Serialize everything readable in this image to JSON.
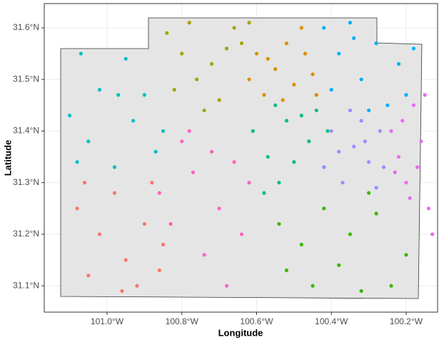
{
  "chart_data": {
    "type": "scatter",
    "x_label": "Longitude",
    "y_label": "Latitude",
    "xlim": [
      -101.168,
      -100.116
    ],
    "ylim": [
      31.049,
      31.647
    ],
    "xticks": [
      {
        "value": -101.0,
        "label": "101.0°W"
      },
      {
        "value": -100.8,
        "label": "100.8°W"
      },
      {
        "value": -100.6,
        "label": "100.6°W"
      },
      {
        "value": -100.4,
        "label": "100.4°W"
      },
      {
        "value": -100.2,
        "label": "100.2°W"
      }
    ],
    "yticks": [
      {
        "value": 31.1,
        "label": "31.1°N"
      },
      {
        "value": 31.2,
        "label": "31.2°N"
      },
      {
        "value": 31.3,
        "label": "31.3°N"
      },
      {
        "value": 31.4,
        "label": "31.4°N"
      },
      {
        "value": 31.5,
        "label": "31.5°N"
      },
      {
        "value": 31.6,
        "label": "31.6°N"
      }
    ],
    "grid": true,
    "series": [
      {
        "color": "#F8766D",
        "x": [
          -101.08,
          -101.05,
          -101.02,
          -100.98,
          -100.95,
          -100.92,
          -100.9,
          -100.88,
          -100.85,
          -101.06,
          -100.96,
          -100.86
        ],
        "values": [
          31.25,
          31.12,
          31.2,
          31.28,
          31.15,
          31.1,
          31.22,
          31.3,
          31.18,
          31.3,
          31.09,
          31.13
        ]
      },
      {
        "color": "#D89000",
        "x": [
          -100.62,
          -100.58,
          -100.55,
          -100.52,
          -100.5,
          -100.47,
          -100.45,
          -100.57,
          -100.53,
          -100.48,
          -100.6,
          -100.44
        ],
        "values": [
          31.5,
          31.47,
          31.52,
          31.57,
          31.49,
          31.55,
          31.51,
          31.54,
          31.46,
          31.6,
          31.55,
          31.47
        ]
      },
      {
        "color": "#A3A500",
        "x": [
          -100.84,
          -100.8,
          -100.76,
          -100.72,
          -100.7,
          -100.66,
          -100.64,
          -100.62,
          -100.68,
          -100.78,
          -100.74,
          -100.82
        ],
        "values": [
          31.59,
          31.55,
          31.5,
          31.53,
          31.46,
          31.6,
          31.57,
          31.61,
          31.56,
          31.61,
          31.44,
          31.48
        ]
      },
      {
        "color": "#39B600",
        "x": [
          -100.54,
          -100.52,
          -100.48,
          -100.45,
          -100.42,
          -100.38,
          -100.35,
          -100.32,
          -100.28,
          -100.24,
          -100.2,
          -100.3
        ],
        "values": [
          31.22,
          31.13,
          31.18,
          31.1,
          31.25,
          31.14,
          31.2,
          31.09,
          31.24,
          31.1,
          31.16,
          31.28
        ]
      },
      {
        "color": "#00BF7D",
        "x": [
          -100.61,
          -100.57,
          -100.54,
          -100.52,
          -100.48,
          -100.46,
          -100.44,
          -100.42,
          -100.58,
          -100.5,
          -100.55,
          -100.41
        ],
        "values": [
          31.4,
          31.35,
          31.3,
          31.42,
          31.43,
          31.38,
          31.44,
          31.33,
          31.28,
          31.34,
          31.45,
          31.4
        ]
      },
      {
        "color": "#00BFC4",
        "x": [
          -101.1,
          -101.07,
          -101.05,
          -101.02,
          -100.98,
          -100.95,
          -100.93,
          -100.9,
          -100.87,
          -100.85,
          -101.08,
          -100.97
        ],
        "values": [
          31.43,
          31.55,
          31.38,
          31.48,
          31.33,
          31.54,
          31.42,
          31.47,
          31.36,
          31.4,
          31.34,
          31.47
        ]
      },
      {
        "color": "#00B0F6",
        "x": [
          -100.42,
          -100.38,
          -100.35,
          -100.32,
          -100.28,
          -100.25,
          -100.22,
          -100.18,
          -100.3,
          -100.4,
          -100.2,
          -100.34
        ],
        "values": [
          31.6,
          31.55,
          31.61,
          31.5,
          31.57,
          31.45,
          31.53,
          31.56,
          31.44,
          31.48,
          31.47,
          31.58
        ]
      },
      {
        "color": "#9590FF",
        "x": [
          -100.42,
          -100.4,
          -100.37,
          -100.34,
          -100.32,
          -100.3,
          -100.28,
          -100.27,
          -100.35,
          -100.38,
          -100.26,
          -100.31
        ],
        "values": [
          31.33,
          31.4,
          31.3,
          31.37,
          31.42,
          31.34,
          31.29,
          31.4,
          31.44,
          31.36,
          31.33,
          31.38
        ]
      },
      {
        "color": "#E76BF3",
        "x": [
          -100.24,
          -100.22,
          -100.2,
          -100.18,
          -100.16,
          -100.14,
          -100.17,
          -100.21,
          -100.15,
          -100.19,
          -100.13,
          -100.23
        ],
        "values": [
          31.4,
          31.35,
          31.3,
          31.45,
          31.38,
          31.25,
          31.33,
          31.42,
          31.47,
          31.27,
          31.2,
          31.32
        ]
      },
      {
        "color": "#FF62BC",
        "x": [
          -100.86,
          -100.83,
          -100.8,
          -100.77,
          -100.74,
          -100.72,
          -100.7,
          -100.68,
          -100.66,
          -100.64,
          -100.62,
          -100.78
        ],
        "values": [
          31.28,
          31.22,
          31.38,
          31.32,
          31.16,
          31.36,
          31.25,
          31.1,
          31.34,
          31.2,
          31.3,
          31.4
        ]
      }
    ]
  }
}
